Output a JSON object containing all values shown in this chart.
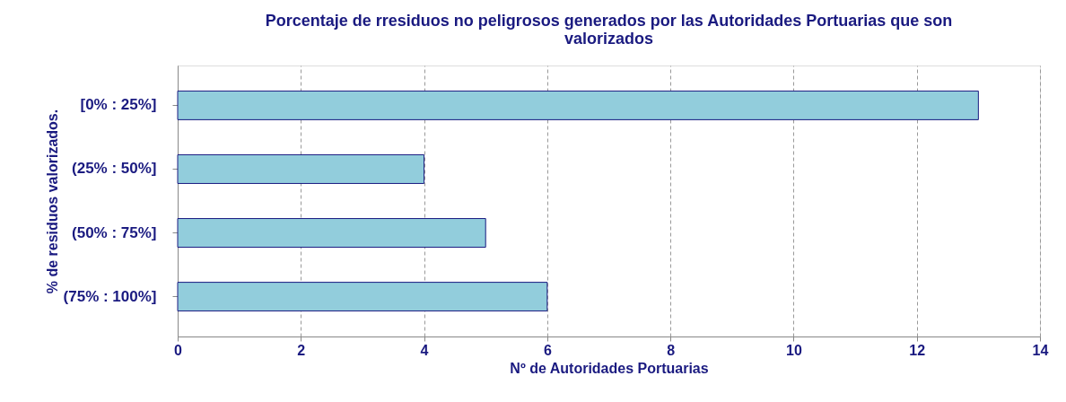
{
  "chart_data": {
    "type": "bar",
    "orientation": "horizontal",
    "title": "Porcentaje de rresiduos no peligrosos generados por las Autoridades Portuarias que son valorizados",
    "xlabel": "Nº de Autoridades Portuarias",
    "ylabel": "% de residuos valorizados.",
    "categories": [
      "[0% : 25%]",
      "(25% : 50%]",
      "(50% : 75%]",
      "(75% : 100%]"
    ],
    "values": [
      13,
      4,
      5,
      6
    ],
    "color": "#92cddc",
    "xlim": [
      0,
      14
    ],
    "xticks": [
      0,
      2,
      4,
      6,
      8,
      10,
      12,
      14
    ],
    "grid": "x"
  }
}
